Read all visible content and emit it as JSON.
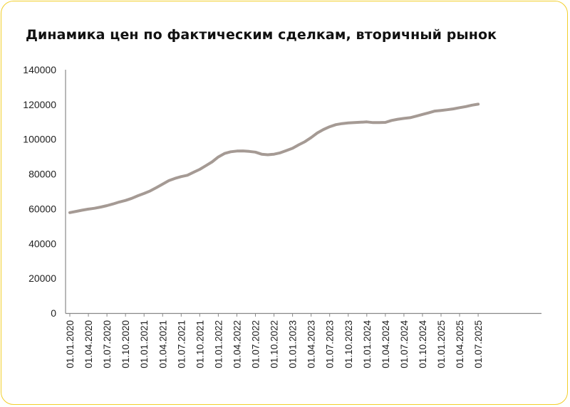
{
  "colors": {
    "border": "#f2cf2c",
    "line": "#a59a94",
    "axis": "#888888",
    "text": "#222222"
  },
  "chart_data": {
    "type": "line",
    "title": "Динамика цен по фактическим сделкам, вторичный рынок",
    "xlabel": "",
    "ylabel": "",
    "ylim": [
      0,
      140000
    ],
    "yticks": [
      "0",
      "20000",
      "40000",
      "60000",
      "80000",
      "100000",
      "120000",
      "140000"
    ],
    "categories": [
      "01.01.2020",
      "01.04.2020",
      "01.07.2020",
      "01.10.2020",
      "01.01.2021",
      "01.04.2021",
      "01.07.2021",
      "01.10.2021",
      "01.01.2022",
      "01.04.2022",
      "01.07.2022",
      "01.10.2022",
      "01.01.2023",
      "01.04.2023",
      "01.07.2023",
      "01.10.2023",
      "01.01.2024",
      "01.04.2024",
      "01.07.2024",
      "01.10.2024",
      "01.01.2025",
      "01.04.2025",
      "01.07.2025"
    ],
    "grid": false,
    "legend": "none",
    "series": [
      {
        "x": [
          "01.01.2020",
          "01.02.2020",
          "01.03.2020",
          "01.04.2020",
          "01.05.2020",
          "01.06.2020",
          "01.07.2020",
          "01.08.2020",
          "01.09.2020",
          "01.10.2020",
          "01.11.2020",
          "01.12.2020",
          "01.01.2021",
          "01.02.2021",
          "01.03.2021",
          "01.04.2021",
          "01.05.2021",
          "01.06.2021",
          "01.07.2021",
          "01.08.2021",
          "01.09.2021",
          "01.10.2021",
          "01.11.2021",
          "01.12.2021",
          "01.01.2022",
          "01.02.2022",
          "01.03.2022",
          "01.04.2022",
          "01.05.2022",
          "01.06.2022",
          "01.07.2022",
          "01.08.2022",
          "01.09.2022",
          "01.10.2022",
          "01.11.2022",
          "01.12.2022",
          "01.01.2023",
          "01.02.2023",
          "01.03.2023",
          "01.04.2023",
          "01.05.2023",
          "01.06.2023",
          "01.07.2023",
          "01.08.2023",
          "01.09.2023",
          "01.10.2023",
          "01.11.2023",
          "01.12.2023",
          "01.01.2024",
          "01.02.2024",
          "01.03.2024",
          "01.04.2024",
          "01.05.2024",
          "01.06.2024",
          "01.07.2024",
          "01.08.2024",
          "01.09.2024",
          "01.10.2024",
          "01.11.2024",
          "01.12.2024",
          "01.01.2025",
          "01.02.2025",
          "01.03.2025",
          "01.04.2025",
          "01.05.2025",
          "01.06.2025",
          "01.07.2025"
        ],
        "values": [
          57800,
          58500,
          59200,
          59800,
          60300,
          61000,
          61800,
          62800,
          63900,
          64800,
          66000,
          67500,
          68800,
          70300,
          72200,
          74200,
          76200,
          77500,
          78500,
          79300,
          81000,
          82700,
          84800,
          87000,
          89800,
          91800,
          92800,
          93200,
          93300,
          93000,
          92600,
          91400,
          91100,
          91400,
          92200,
          93500,
          94800,
          96800,
          98600,
          101000,
          103600,
          105600,
          107200,
          108400,
          109000,
          109400,
          109600,
          109800,
          110000,
          109600,
          109600,
          109700,
          110800,
          111500,
          112000,
          112400,
          113300,
          114300,
          115200,
          116200,
          116600,
          117000,
          117500,
          118200,
          118800,
          119600,
          120200
        ]
      }
    ]
  }
}
